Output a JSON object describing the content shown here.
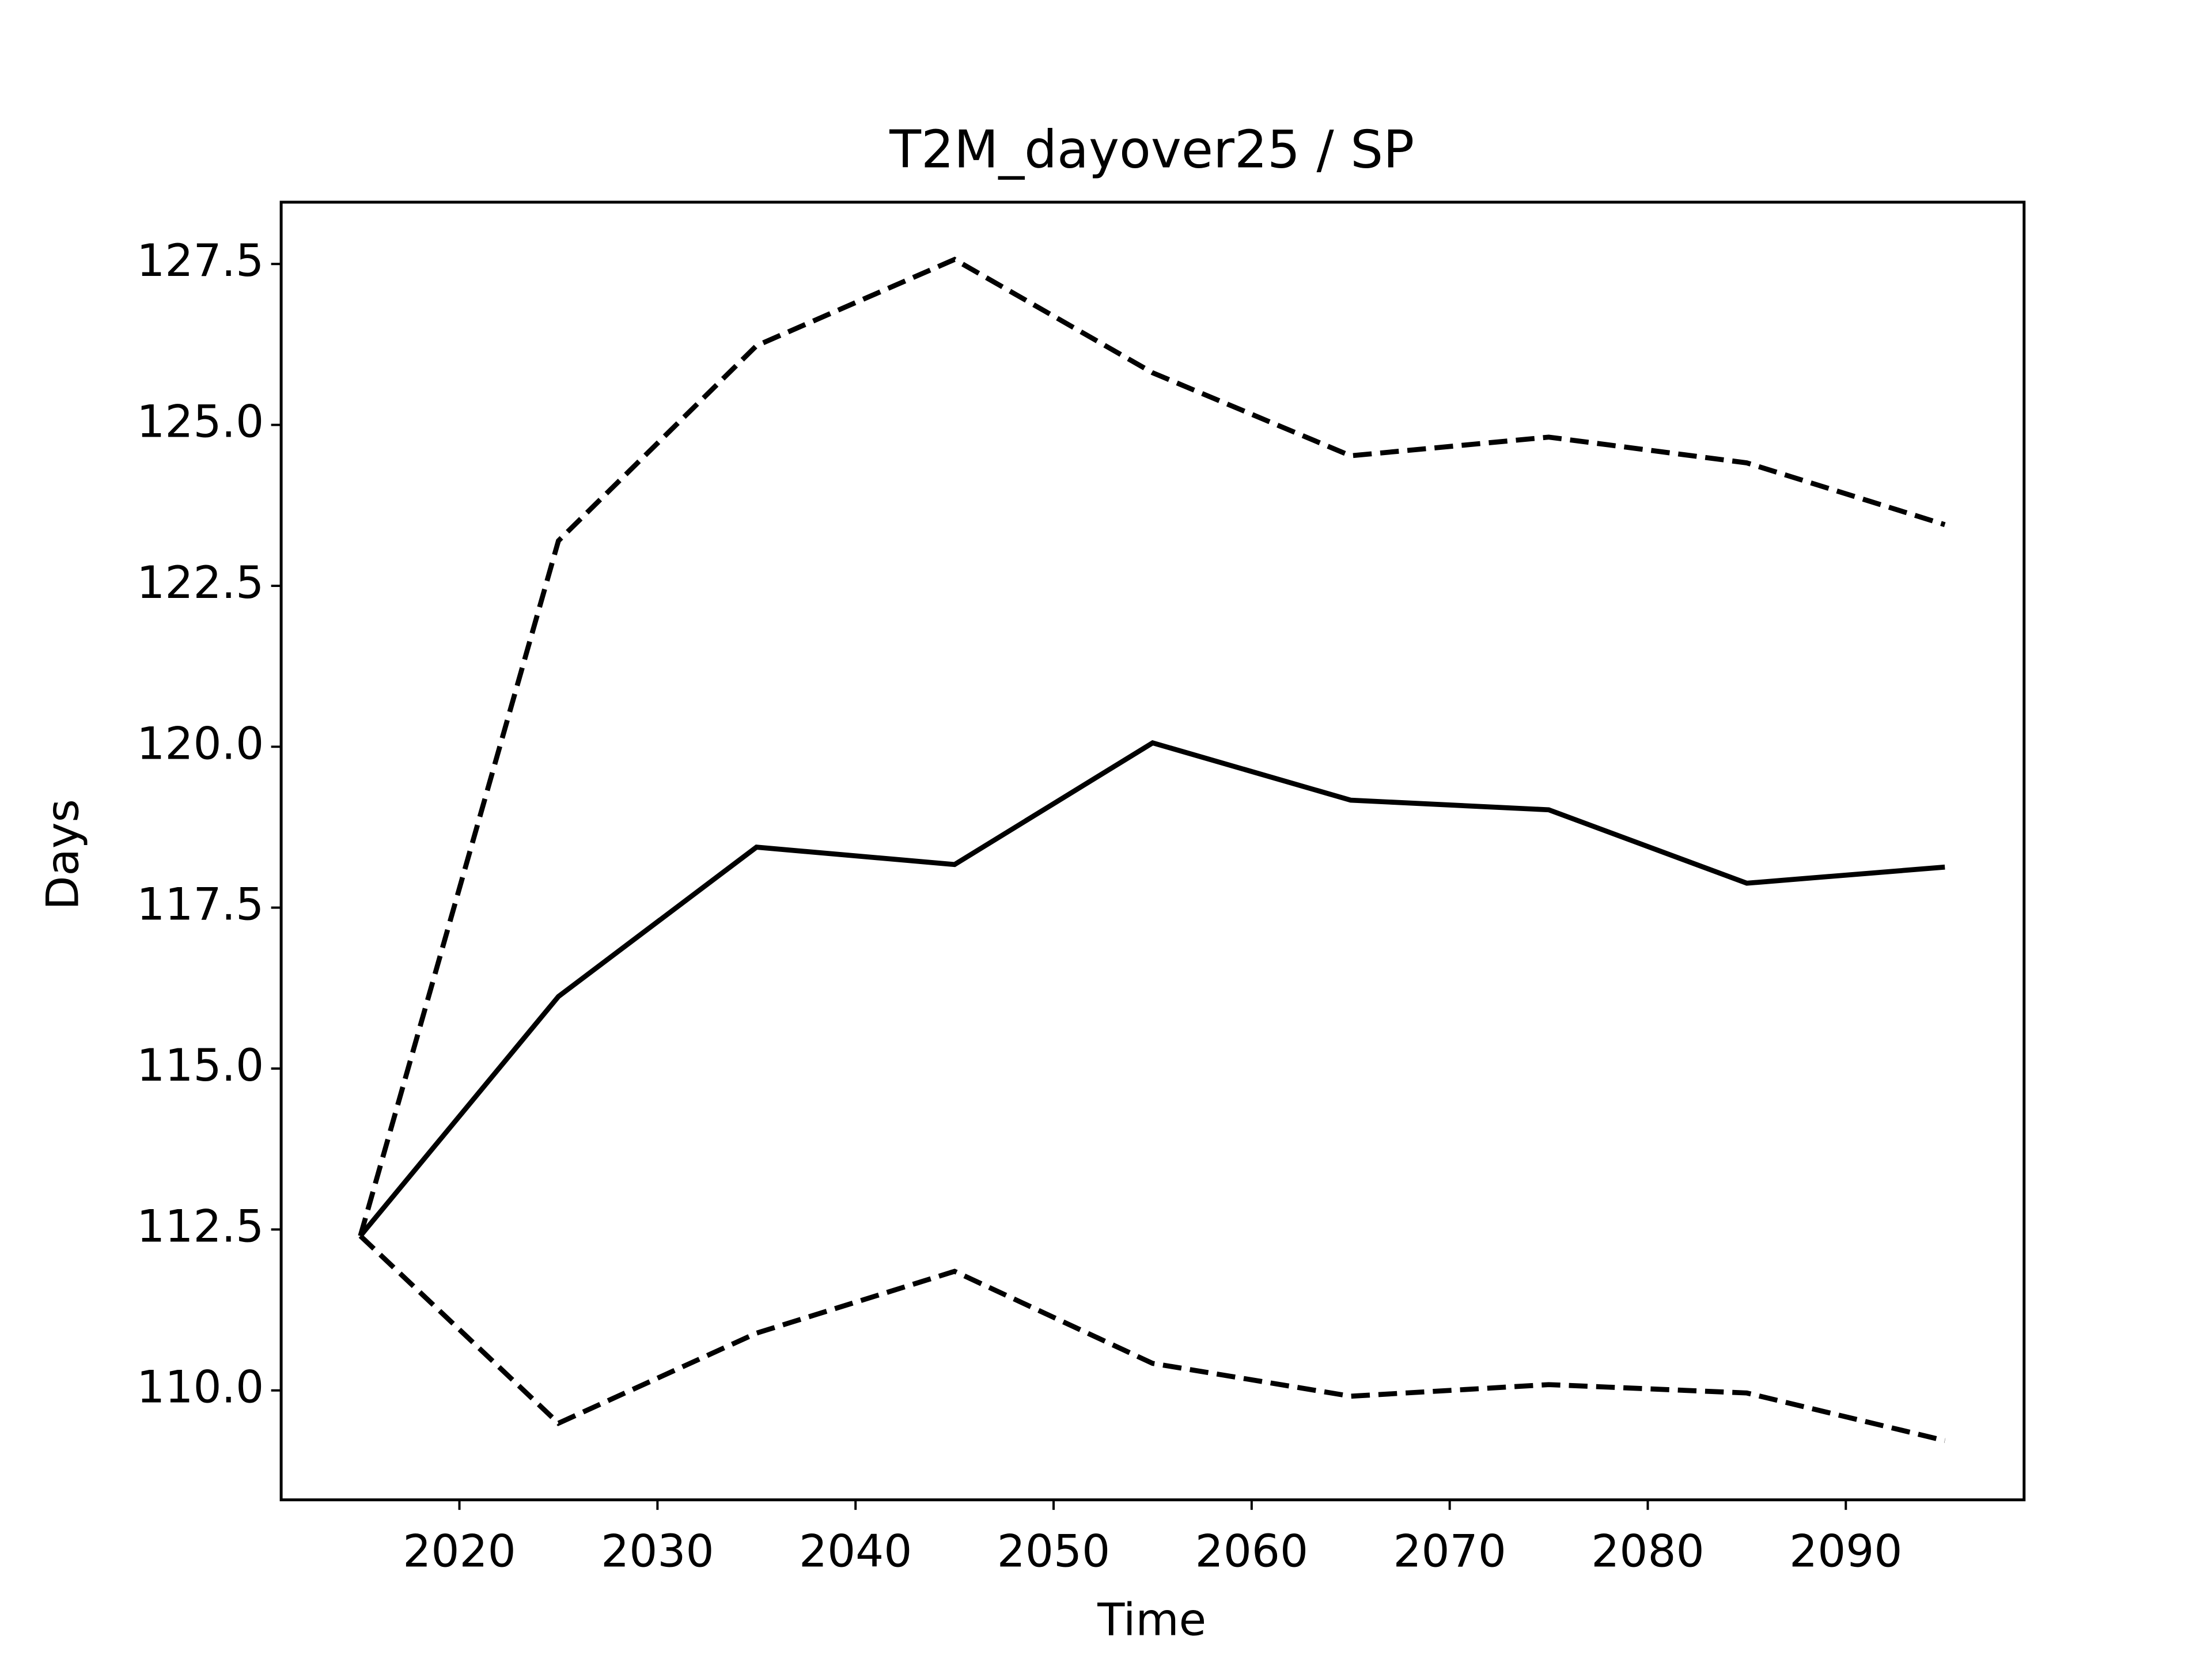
{
  "chart_data": {
    "type": "line",
    "title": "T2M_dayover25 / SP",
    "xlabel": "Time",
    "ylabel": "Days",
    "x": [
      2015,
      2025,
      2035,
      2045,
      2055,
      2065,
      2075,
      2085,
      2095
    ],
    "series": [
      {
        "color": "#000000",
        "linestyle": "solid",
        "values": [
          112.4,
          116.12,
          118.44,
          118.17,
          120.06,
          119.17,
          119.02,
          117.88,
          118.13
        ]
      },
      {
        "color": "#000000",
        "linestyle": "dashed",
        "values": [
          112.4,
          123.2,
          126.23,
          127.57,
          125.81,
          124.52,
          124.81,
          124.41,
          123.45
        ]
      },
      {
        "color": "#000000",
        "linestyle": "dashed",
        "values": [
          112.4,
          109.49,
          110.89,
          111.85,
          110.42,
          109.91,
          110.09,
          109.96,
          109.22
        ]
      }
    ],
    "xlim": [
      2011,
      2099
    ],
    "xticks": [
      2020,
      2030,
      2040,
      2050,
      2060,
      2070,
      2080,
      2090
    ],
    "ylim": [
      108.3,
      128.46
    ],
    "yticks": [
      {
        "value": 110,
        "label": "110.0"
      },
      112.5,
      {
        "value": 115,
        "label": "115.0"
      },
      117.5,
      {
        "value": 120,
        "label": "120.0"
      },
      122.5,
      {
        "value": 125,
        "label": "125.0"
      },
      127.5
    ],
    "grid": false
  }
}
